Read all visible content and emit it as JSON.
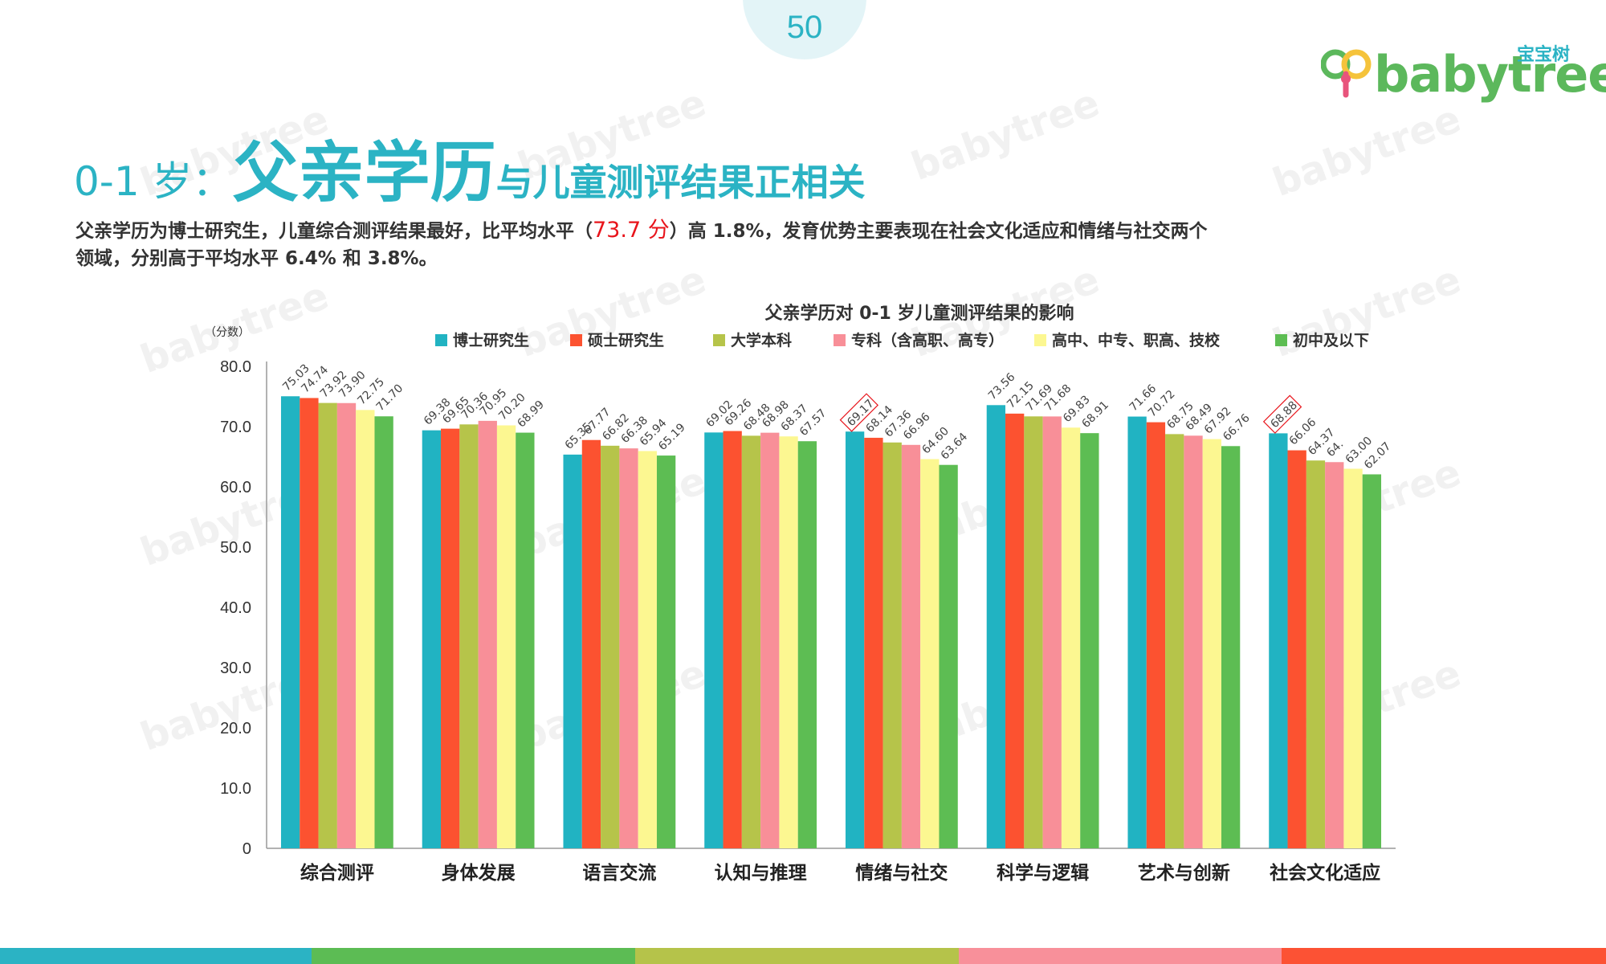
{
  "page_number": "50",
  "logo": {
    "cn": "宝宝树",
    "en": "babytree"
  },
  "watermark_text": "babytree",
  "title": {
    "prefix": "0-1 岁：",
    "emphasis": "父亲学历",
    "suffix": "与儿童测评结果正相关"
  },
  "description": {
    "part1": "父亲学历为博士研究生，儿童综合测评结果最好，比平均水平（",
    "highlight": "73.7 分",
    "part2": "）高 1.8%，发育优势主要表现在社会文化适应和情绪与社交两个领域，分别高于平均水平 6.4% 和 3.8%。"
  },
  "colors": {
    "accent": "#2bb3c4",
    "highlight": "#e8141b",
    "bottom_bar": [
      "#2bb3c4",
      "#5cbc54",
      "#b5c34a",
      "#f8909a",
      "#fc5234"
    ]
  },
  "chart_data": {
    "type": "bar",
    "title": "父亲学历对 0-1 岁儿童测评结果的影响",
    "ylabel": "（分数）",
    "ylim": [
      0,
      80
    ],
    "yticks": [
      "0",
      "10.0",
      "20.0",
      "30.0",
      "40.0",
      "50.0",
      "60.0",
      "70.0",
      "80.0"
    ],
    "legend_position": "top",
    "categories": [
      "综合测评",
      "身体发展",
      "语言交流",
      "认知与推理",
      "情绪与社交",
      "科学与逻辑",
      "艺术与创新",
      "社会文化适应"
    ],
    "series": [
      {
        "name": "博士研究生",
        "color": "#21b3c2",
        "values": [
          75.03,
          69.38,
          65.35,
          69.02,
          69.17,
          73.56,
          71.66,
          68.88
        ],
        "labels": [
          "75.03",
          "69.38",
          "65.35",
          "69.02",
          "69.17",
          "73.56",
          "71.66",
          "68.88"
        ]
      },
      {
        "name": "硕士研究生",
        "color": "#fc5230",
        "values": [
          74.74,
          69.65,
          67.77,
          69.26,
          68.14,
          72.15,
          70.72,
          66.06
        ],
        "labels": [
          "74.74",
          "69.65",
          "67.77",
          "69.26",
          "68.14",
          "72.15",
          "70.72",
          "66.06"
        ]
      },
      {
        "name": "大学本科",
        "color": "#b6c44a",
        "values": [
          73.92,
          70.36,
          66.82,
          68.48,
          67.36,
          71.69,
          68.75,
          64.37
        ],
        "labels": [
          "73.92",
          "70.36",
          "66.82",
          "68.48",
          "67.36",
          "71.69",
          "68.75",
          "64.37"
        ]
      },
      {
        "name": "专科（含高职、高专）",
        "color": "#f88f98",
        "values": [
          73.9,
          70.95,
          66.38,
          68.98,
          66.96,
          71.68,
          68.49,
          64.1
        ],
        "labels": [
          "73.90",
          "70.95",
          "66.38",
          "68.98",
          "66.96",
          "71.68",
          "68.49",
          "64."
        ]
      },
      {
        "name": "高中、中专、职高、技校",
        "color": "#fcf791",
        "values": [
          72.75,
          70.2,
          65.94,
          68.37,
          64.6,
          69.83,
          67.92,
          63.0
        ],
        "labels": [
          "72.75",
          "70.20",
          "65.94",
          "68.37",
          "64.60",
          "69.83",
          "67.92",
          "63.00"
        ]
      },
      {
        "name": "初中及以下",
        "color": "#5dbd53",
        "values": [
          71.7,
          68.99,
          65.19,
          67.57,
          63.64,
          68.91,
          66.76,
          62.07
        ],
        "labels": [
          "71.70",
          "68.99",
          "65.19",
          "67.57",
          "63.64",
          "68.91",
          "66.76",
          "62.07"
        ]
      }
    ],
    "boxed_labels": [
      {
        "series": 0,
        "category": 4
      },
      {
        "series": 0,
        "category": 7
      }
    ]
  }
}
